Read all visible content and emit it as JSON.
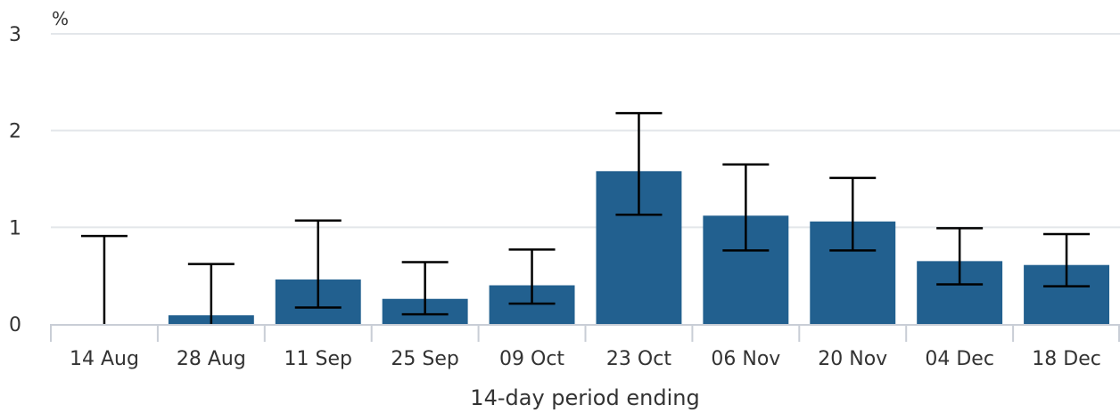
{
  "chart_data": {
    "type": "bar",
    "unit_label": "%",
    "xlabel": "14-day period ending",
    "ylabel": "",
    "ylim": [
      0,
      3
    ],
    "yticks": [
      "0",
      "1",
      "2",
      "3"
    ],
    "grid": true,
    "bar_color": "#22608f",
    "errorbar_color": "#000000",
    "categories": [
      "14 Aug",
      "28 Aug",
      "11 Sep",
      "25 Sep",
      "09 Oct",
      "23 Oct",
      "06 Nov",
      "20 Nov",
      "04 Dec",
      "18 Dec"
    ],
    "values": [
      0.0,
      0.09,
      0.46,
      0.26,
      0.4,
      1.58,
      1.12,
      1.06,
      0.65,
      0.61
    ],
    "lower": [
      0.0,
      0.0,
      0.17,
      0.1,
      0.21,
      1.13,
      0.76,
      0.76,
      0.41,
      0.39
    ],
    "upper": [
      0.91,
      0.62,
      1.07,
      0.64,
      0.77,
      2.18,
      1.65,
      1.51,
      0.99,
      0.93
    ]
  }
}
